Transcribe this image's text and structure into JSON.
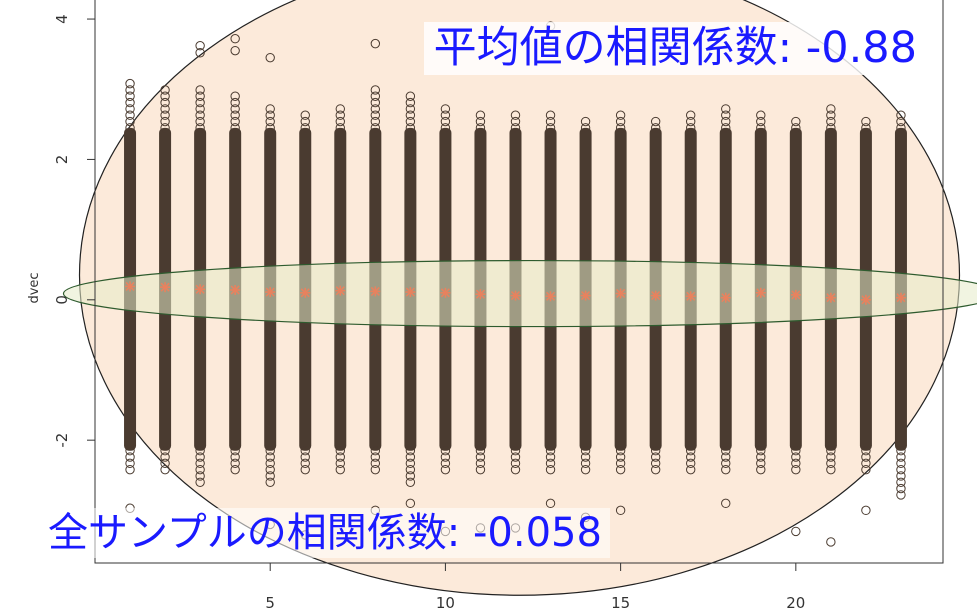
{
  "chart_data": {
    "type": "scatter",
    "title": "",
    "xlabel": "",
    "ylabel": "dvec",
    "xlim": [
      0,
      24.2
    ],
    "ylim": [
      -3.75,
      4.3
    ],
    "xticks": [
      5,
      10,
      15,
      20
    ],
    "yticks": [
      -2,
      0,
      2,
      4
    ],
    "x_tick_labels": [
      "5",
      "10",
      "15",
      "20"
    ],
    "y_tick_labels": [
      "-2",
      "0",
      "2",
      "4"
    ],
    "grid": false,
    "legend": "none",
    "groups_x": [
      1,
      2,
      3,
      4,
      5,
      6,
      7,
      8,
      9,
      10,
      11,
      12,
      13,
      14,
      15,
      16,
      17,
      18,
      19,
      20,
      21,
      22,
      23
    ],
    "group_means": [
      0.19,
      0.18,
      0.15,
      0.14,
      0.11,
      0.1,
      0.13,
      0.12,
      0.11,
      0.1,
      0.08,
      0.06,
      0.05,
      0.06,
      0.09,
      0.06,
      0.05,
      0.03,
      0.1,
      0.07,
      0.03,
      0.0,
      0.03
    ],
    "group_range_low": [
      -2.5,
      -2.5,
      -2.6,
      -2.5,
      -2.6,
      -2.5,
      -2.5,
      -2.5,
      -2.6,
      -2.5,
      -2.5,
      -2.5,
      -2.5,
      -2.5,
      -2.5,
      -2.5,
      -2.5,
      -2.5,
      -2.5,
      -2.5,
      -2.5,
      -2.5,
      -2.8
    ],
    "group_range_high": [
      3.1,
      3.0,
      3.0,
      2.9,
      2.8,
      2.7,
      2.8,
      3.0,
      2.9,
      2.8,
      2.7,
      2.7,
      2.7,
      2.6,
      2.7,
      2.6,
      2.7,
      2.8,
      2.7,
      2.6,
      2.8,
      2.6,
      2.7
    ],
    "outliers": [
      {
        "x": 1,
        "y": [
          -2.97
        ]
      },
      {
        "x": 3,
        "y": [
          3.52,
          3.62
        ]
      },
      {
        "x": 4,
        "y": [
          3.72,
          3.55
        ]
      },
      {
        "x": 5,
        "y": [
          3.45,
          -3.2
        ]
      },
      {
        "x": 6,
        "y": [
          -3.35
        ]
      },
      {
        "x": 8,
        "y": [
          3.65,
          -3.0
        ]
      },
      {
        "x": 9,
        "y": [
          -2.9
        ]
      },
      {
        "x": 10,
        "y": [
          -3.3
        ]
      },
      {
        "x": 11,
        "y": [
          -3.25
        ]
      },
      {
        "x": 12,
        "y": [
          -3.25
        ]
      },
      {
        "x": 13,
        "y": [
          3.9,
          -2.9
        ]
      },
      {
        "x": 14,
        "y": [
          -3.1
        ]
      },
      {
        "x": 15,
        "y": [
          -3.0
        ]
      },
      {
        "x": 18,
        "y": [
          -2.9
        ]
      },
      {
        "x": 20,
        "y": [
          -3.3
        ]
      },
      {
        "x": 21,
        "y": [
          -3.45
        ]
      },
      {
        "x": 22,
        "y": [
          -3.0
        ]
      }
    ],
    "annotations": [
      "平均値の相関係数: -0.88",
      "全サンプルの相関係数: -0.058"
    ],
    "colors": {
      "points": "#4a3b30",
      "means": "#e8825e",
      "outer_ellipse_fill": "#fbe3cd",
      "inner_ellipse_fill": "#e6ebc8",
      "inner_ellipse_stroke": "#2e5b2e",
      "annotation_text": "#1a1aff"
    }
  }
}
